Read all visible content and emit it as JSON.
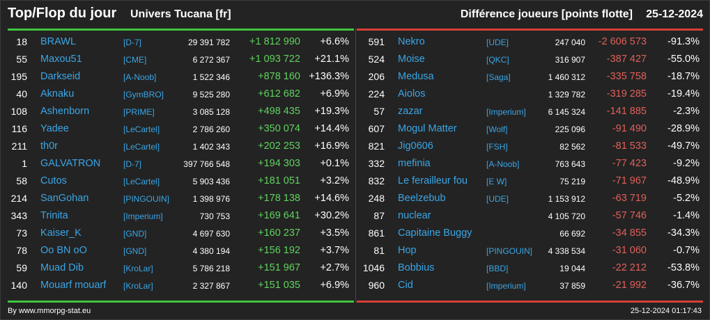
{
  "header": {
    "title": "Top/Flop du jour",
    "universe": "Univers Tucana [fr]",
    "diff_label": "Différence joueurs [points flotte]",
    "date": "25-12-2024"
  },
  "top": [
    {
      "rank": "18",
      "name": "BRAWL",
      "ally": "[D-7]",
      "points": "29 391 782",
      "delta": "+1 812 990",
      "pct": "+6.6%"
    },
    {
      "rank": "55",
      "name": "Maxou51",
      "ally": "[CME]",
      "points": "6 272 367",
      "delta": "+1 093 722",
      "pct": "+21.1%"
    },
    {
      "rank": "195",
      "name": "Darkseid",
      "ally": "[A-Noob]",
      "points": "1 522 346",
      "delta": "+878 160",
      "pct": "+136.3%"
    },
    {
      "rank": "40",
      "name": "Aknaku",
      "ally": "[GymBRO]",
      "points": "9 525 280",
      "delta": "+612 682",
      "pct": "+6.9%"
    },
    {
      "rank": "108",
      "name": "Ashenborn",
      "ally": "[PRIME]",
      "points": "3 085 128",
      "delta": "+498 435",
      "pct": "+19.3%"
    },
    {
      "rank": "116",
      "name": "Yadee",
      "ally": "[LeCartel]",
      "points": "2 786 260",
      "delta": "+350 074",
      "pct": "+14.4%"
    },
    {
      "rank": "211",
      "name": "th0r",
      "ally": "[LeCartel]",
      "points": "1 402 343",
      "delta": "+202 253",
      "pct": "+16.9%"
    },
    {
      "rank": "1",
      "name": "GALVATRON",
      "ally": "[D-7]",
      "points": "397 766 548",
      "delta": "+194 303",
      "pct": "+0.1%"
    },
    {
      "rank": "58",
      "name": "Cutos",
      "ally": "[LeCartel]",
      "points": "5 903 436",
      "delta": "+181 051",
      "pct": "+3.2%"
    },
    {
      "rank": "214",
      "name": "SanGohan",
      "ally": "[PINGOUIN]",
      "points": "1 398 976",
      "delta": "+178 138",
      "pct": "+14.6%"
    },
    {
      "rank": "343",
      "name": "Trinita",
      "ally": "[Imperium]",
      "points": "730 753",
      "delta": "+169 641",
      "pct": "+30.2%"
    },
    {
      "rank": "73",
      "name": "Kaiser_K",
      "ally": "[GND]",
      "points": "4 697 630",
      "delta": "+160 237",
      "pct": "+3.5%"
    },
    {
      "rank": "78",
      "name": "Oo BN oO",
      "ally": "[GND]",
      "points": "4 380 194",
      "delta": "+156 192",
      "pct": "+3.7%"
    },
    {
      "rank": "59",
      "name": "Muad Dib",
      "ally": "[KroLar]",
      "points": "5 786 218",
      "delta": "+151 967",
      "pct": "+2.7%"
    },
    {
      "rank": "140",
      "name": "Mouarf mouarf",
      "ally": "[KroLar]",
      "points": "2 327 867",
      "delta": "+151 035",
      "pct": "+6.9%"
    }
  ],
  "flop": [
    {
      "rank": "591",
      "name": "Nekro",
      "ally": "[UDE]",
      "points": "247 040",
      "delta": "-2 606 573",
      "pct": "-91.3%"
    },
    {
      "rank": "524",
      "name": "Moise",
      "ally": "[QKC]",
      "points": "316 907",
      "delta": "-387 427",
      "pct": "-55.0%"
    },
    {
      "rank": "206",
      "name": "Medusa",
      "ally": "[Saga]",
      "points": "1 460 312",
      "delta": "-335 758",
      "pct": "-18.7%"
    },
    {
      "rank": "224",
      "name": "Aiolos",
      "ally": "",
      "points": "1 329 782",
      "delta": "-319 285",
      "pct": "-19.4%"
    },
    {
      "rank": "57",
      "name": "zazar",
      "ally": "[Imperium]",
      "points": "6 145 324",
      "delta": "-141 885",
      "pct": "-2.3%"
    },
    {
      "rank": "607",
      "name": "Mogul Matter",
      "ally": "[Wolf]",
      "points": "225 096",
      "delta": "-91 490",
      "pct": "-28.9%"
    },
    {
      "rank": "821",
      "name": "Jig0606",
      "ally": "[FSH]",
      "points": "82 562",
      "delta": "-81 533",
      "pct": "-49.7%"
    },
    {
      "rank": "332",
      "name": "mefinia",
      "ally": "[A-Noob]",
      "points": "763 643",
      "delta": "-77 423",
      "pct": "-9.2%"
    },
    {
      "rank": "832",
      "name": "Le ferailleur fou",
      "ally": "[E W]",
      "points": "75 219",
      "delta": "-71 967",
      "pct": "-48.9%"
    },
    {
      "rank": "248",
      "name": "Beelzebub",
      "ally": "[UDE]",
      "points": "1 153 912",
      "delta": "-63 719",
      "pct": "-5.2%"
    },
    {
      "rank": "87",
      "name": "nuclear",
      "ally": "",
      "points": "4 105 720",
      "delta": "-57 746",
      "pct": "-1.4%"
    },
    {
      "rank": "861",
      "name": "Capitaine Buggy",
      "ally": "",
      "points": "66 692",
      "delta": "-34 855",
      "pct": "-34.3%"
    },
    {
      "rank": "81",
      "name": "Hop",
      "ally": "[PINGOUIN]",
      "points": "4 338 534",
      "delta": "-31 060",
      "pct": "-0.7%"
    },
    {
      "rank": "1046",
      "name": "Bobbius",
      "ally": "[BBD]",
      "points": "19 044",
      "delta": "-22 212",
      "pct": "-53.8%"
    },
    {
      "rank": "960",
      "name": "Cid",
      "ally": "[Imperium]",
      "points": "37 859",
      "delta": "-21 992",
      "pct": "-36.7%"
    }
  ],
  "footer": {
    "source": "By www.mmorpg-stat.eu",
    "timestamp": "25-12-2024 01:17:43"
  },
  "colors": {
    "positive": "#5fd35f",
    "negative": "#e0605a",
    "link": "#3aa6e6",
    "background": "#232323"
  }
}
